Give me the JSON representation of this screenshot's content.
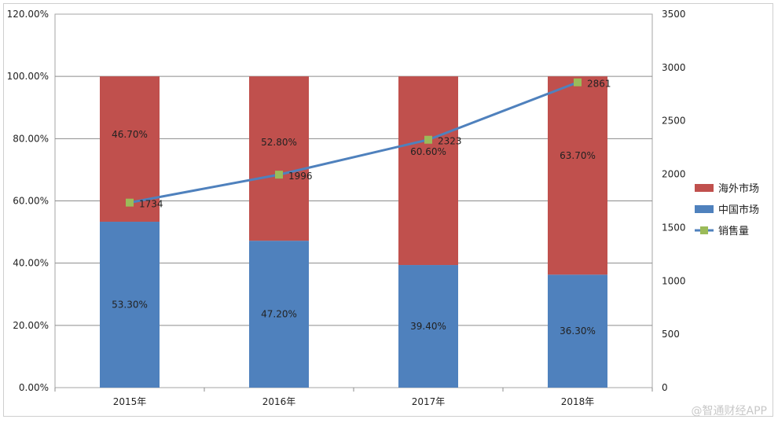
{
  "chart_data": {
    "type": "bar",
    "stacked": true,
    "categories": [
      "2015年",
      "2016年",
      "2017年",
      "2018年"
    ],
    "series": [
      {
        "name": "中国市场",
        "type": "bar",
        "axis": "left",
        "color": "#4f81bd",
        "values": [
          53.3,
          47.2,
          39.4,
          36.3
        ],
        "labels": [
          "53.30%",
          "47.20%",
          "39.40%",
          "36.30%"
        ]
      },
      {
        "name": "海外市场",
        "type": "bar",
        "axis": "left",
        "color": "#c0504d",
        "values": [
          46.7,
          52.8,
          60.6,
          63.7
        ],
        "labels": [
          "46.70%",
          "52.80%",
          "60.60%",
          "63.70%"
        ]
      },
      {
        "name": "销售量",
        "type": "line",
        "axis": "right",
        "color": "#4f81bd",
        "marker_color": "#9bbb59",
        "values": [
          1734,
          1996,
          2323,
          2861
        ],
        "labels": [
          "1734",
          "1996",
          "2323",
          "2861"
        ]
      }
    ],
    "left_axis": {
      "ylim": [
        0,
        120
      ],
      "ticks": [
        "0.00%",
        "20.00%",
        "40.00%",
        "60.00%",
        "80.00%",
        "100.00%",
        "120.00%"
      ]
    },
    "right_axis": {
      "ylim": [
        0,
        3500
      ],
      "ticks": [
        "0",
        "500",
        "1000",
        "1500",
        "2000",
        "2500",
        "3000",
        "3500"
      ]
    },
    "grid": true,
    "legend_position": "right"
  },
  "watermark": "@智通财经APP"
}
